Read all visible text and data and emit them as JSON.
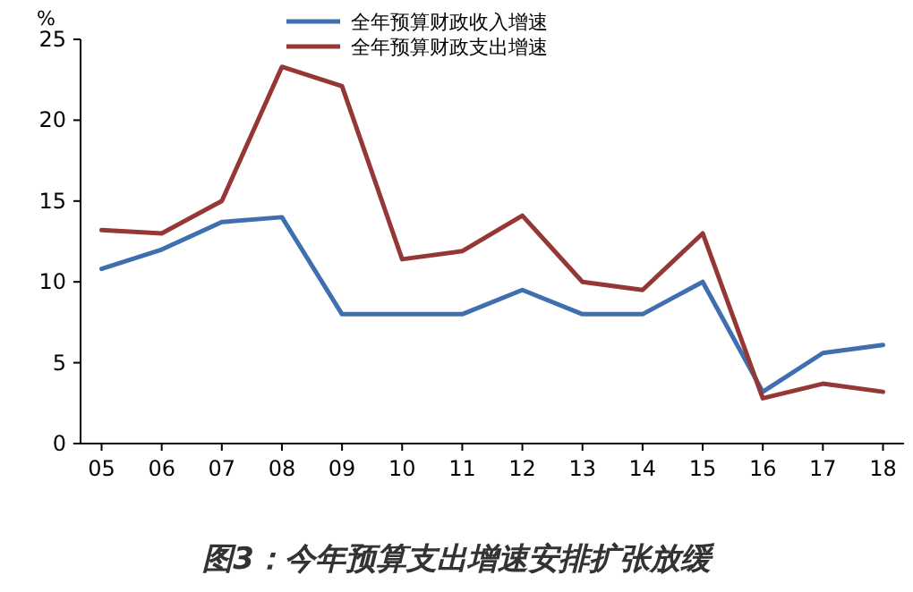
{
  "chart_data": {
    "type": "line",
    "title": "图3：今年预算支出增速安排扩张放缓",
    "ylabel": "%",
    "categories": [
      "05",
      "06",
      "07",
      "08",
      "09",
      "10",
      "11",
      "12",
      "13",
      "14",
      "15",
      "16",
      "17",
      "18"
    ],
    "series": [
      {
        "name": "全年预算财政收入增速",
        "color": "#3f6fae",
        "values": [
          10.8,
          12,
          13.7,
          14,
          8,
          8,
          8,
          9.5,
          8,
          8,
          10,
          3.2,
          5.6,
          6.1
        ]
      },
      {
        "name": "全年预算财政支出增速",
        "color": "#953735",
        "values": [
          13.2,
          13,
          15,
          23.3,
          22.1,
          11.4,
          11.9,
          14.1,
          10,
          9.5,
          13,
          2.8,
          3.7,
          3.2
        ]
      }
    ],
    "ylim": [
      0,
      25
    ],
    "yticks": [
      0,
      5,
      10,
      15,
      20,
      25
    ],
    "grid": false,
    "legend": "top",
    "marker": "none",
    "line_style": "solid"
  }
}
